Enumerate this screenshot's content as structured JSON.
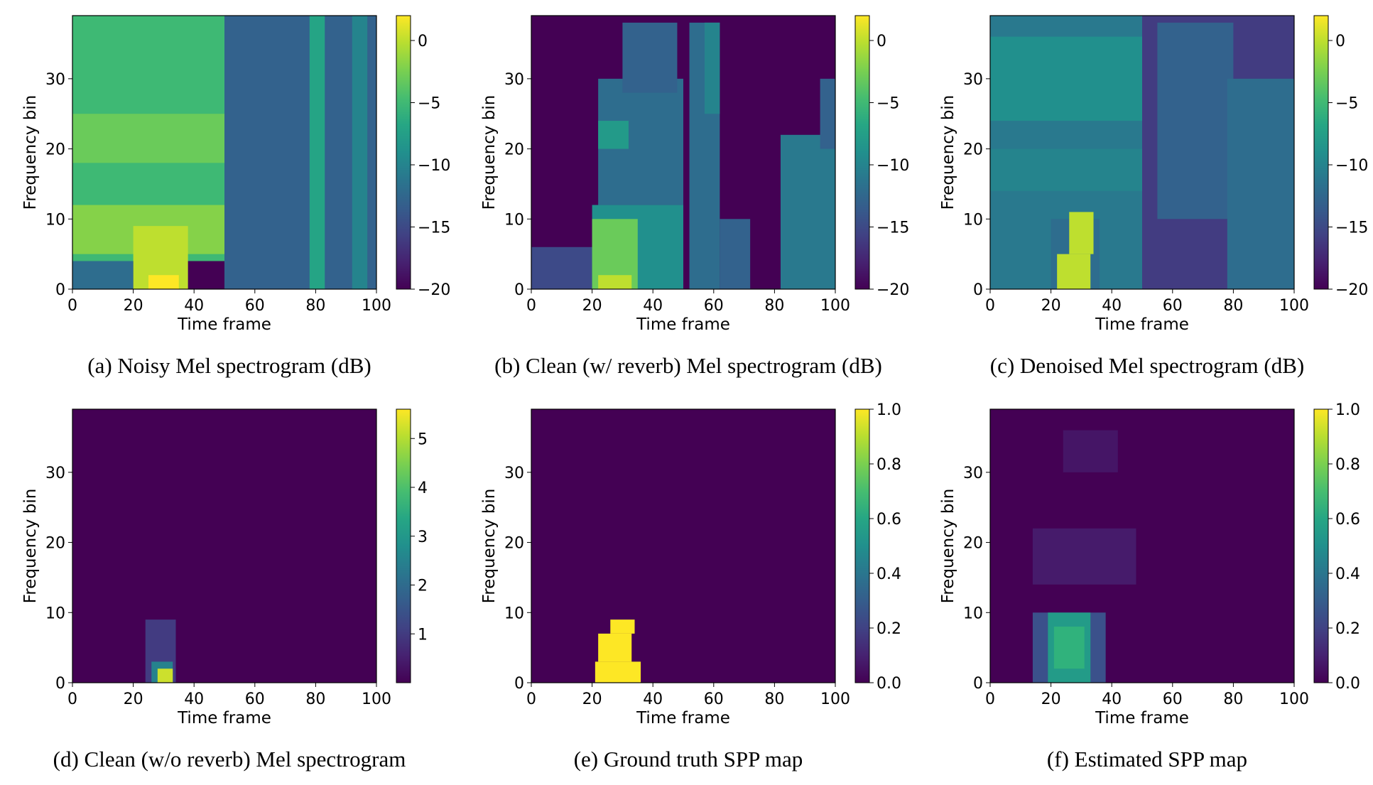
{
  "chart_data": [
    {
      "type": "heatmap",
      "panel": "a",
      "caption": "(a) Noisy Mel spectrogram (dB)",
      "xlabel": "Time frame",
      "ylabel": "Frequency bin",
      "xlim": [
        0,
        100
      ],
      "ylim": [
        0,
        39
      ],
      "xticks": [
        "0",
        "20",
        "40",
        "60",
        "80",
        "100"
      ],
      "yticks": [
        "0",
        "10",
        "20",
        "30"
      ],
      "colorbar": {
        "range": [
          -20,
          2
        ],
        "ticks": [
          "0",
          "−5",
          "−10",
          "−15",
          "−20"
        ]
      },
      "regions": [
        {
          "x": [
            0,
            50
          ],
          "y": [
            4,
            39
          ],
          "value": -5
        },
        {
          "x": [
            0,
            50
          ],
          "y": [
            5,
            12
          ],
          "value": -2
        },
        {
          "x": [
            0,
            50
          ],
          "y": [
            18,
            25
          ],
          "value": -3
        },
        {
          "x": [
            20,
            38
          ],
          "y": [
            0,
            9
          ],
          "value": 0
        },
        {
          "x": [
            25,
            35
          ],
          "y": [
            0,
            2
          ],
          "value": 2
        },
        {
          "x": [
            0,
            20
          ],
          "y": [
            0,
            4
          ],
          "value": -12
        },
        {
          "x": [
            50,
            100
          ],
          "y": [
            0,
            39
          ],
          "value": -13
        },
        {
          "x": [
            78,
            83
          ],
          "y": [
            0,
            39
          ],
          "value": -7
        },
        {
          "x": [
            92,
            97
          ],
          "y": [
            0,
            39
          ],
          "value": -10
        }
      ]
    },
    {
      "type": "heatmap",
      "panel": "b",
      "caption": "(b) Clean (w/ reverb) Mel spectrogram (dB)",
      "xlabel": "Time frame",
      "ylabel": "Frequency bin",
      "xlim": [
        0,
        100
      ],
      "ylim": [
        0,
        39
      ],
      "xticks": [
        "0",
        "20",
        "40",
        "60",
        "80",
        "100"
      ],
      "yticks": [
        "0",
        "10",
        "20",
        "30"
      ],
      "colorbar": {
        "range": [
          -20,
          2
        ],
        "ticks": [
          "0",
          "−5",
          "−10",
          "−15",
          "−20"
        ]
      },
      "regions": [
        {
          "x": [
            0,
            20
          ],
          "y": [
            0,
            6
          ],
          "value": -15
        },
        {
          "x": [
            20,
            50
          ],
          "y": [
            0,
            12
          ],
          "value": -9
        },
        {
          "x": [
            22,
            50
          ],
          "y": [
            12,
            30
          ],
          "value": -12
        },
        {
          "x": [
            30,
            48
          ],
          "y": [
            28,
            38
          ],
          "value": -13
        },
        {
          "x": [
            20,
            35
          ],
          "y": [
            0,
            10
          ],
          "value": -3
        },
        {
          "x": [
            22,
            33
          ],
          "y": [
            0,
            2
          ],
          "value": 0
        },
        {
          "x": [
            22,
            32
          ],
          "y": [
            20,
            24
          ],
          "value": -8
        },
        {
          "x": [
            52,
            62
          ],
          "y": [
            0,
            38
          ],
          "value": -12
        },
        {
          "x": [
            57,
            62
          ],
          "y": [
            25,
            38
          ],
          "value": -10
        },
        {
          "x": [
            62,
            72
          ],
          "y": [
            0,
            10
          ],
          "value": -13
        },
        {
          "x": [
            82,
            100
          ],
          "y": [
            0,
            22
          ],
          "value": -11
        },
        {
          "x": [
            95,
            100
          ],
          "y": [
            20,
            30
          ],
          "value": -13
        }
      ]
    },
    {
      "type": "heatmap",
      "panel": "c",
      "caption": "(c) Denoised Mel spectrogram (dB)",
      "xlabel": "Time frame",
      "ylabel": "Frequency bin",
      "xlim": [
        0,
        100
      ],
      "ylim": [
        0,
        39
      ],
      "xticks": [
        "0",
        "20",
        "40",
        "60",
        "80",
        "100"
      ],
      "yticks": [
        "0",
        "10",
        "20",
        "30"
      ],
      "colorbar": {
        "range": [
          -20,
          2
        ],
        "ticks": [
          "0",
          "−5",
          "−10",
          "−15",
          "−20"
        ]
      },
      "regions": [
        {
          "x": [
            0,
            50
          ],
          "y": [
            0,
            39
          ],
          "value": -11
        },
        {
          "x": [
            0,
            50
          ],
          "y": [
            24,
            36
          ],
          "value": -9
        },
        {
          "x": [
            0,
            50
          ],
          "y": [
            14,
            20
          ],
          "value": -10
        },
        {
          "x": [
            20,
            36
          ],
          "y": [
            0,
            10
          ],
          "value": -12
        },
        {
          "x": [
            22,
            33
          ],
          "y": [
            0,
            5
          ],
          "value": 0
        },
        {
          "x": [
            26,
            34
          ],
          "y": [
            5,
            11
          ],
          "value": 0
        },
        {
          "x": [
            50,
            100
          ],
          "y": [
            0,
            39
          ],
          "value": -16
        },
        {
          "x": [
            55,
            80
          ],
          "y": [
            10,
            38
          ],
          "value": -13
        },
        {
          "x": [
            78,
            100
          ],
          "y": [
            0,
            30
          ],
          "value": -12
        }
      ]
    },
    {
      "type": "heatmap",
      "panel": "d",
      "caption": "(d) Clean (w/o reverb) Mel spectrogram",
      "xlabel": "Time frame",
      "ylabel": "Frequency bin",
      "xlim": [
        0,
        100
      ],
      "ylim": [
        0,
        39
      ],
      "xticks": [
        "0",
        "20",
        "40",
        "60",
        "80",
        "100"
      ],
      "yticks": [
        "0",
        "10",
        "20",
        "30"
      ],
      "colorbar": {
        "range": [
          0,
          5.6
        ],
        "ticks": [
          "1",
          "2",
          "3",
          "4",
          "5"
        ]
      },
      "regions": [
        {
          "x": [
            24,
            34
          ],
          "y": [
            0,
            9
          ],
          "value": 1
        },
        {
          "x": [
            26,
            33
          ],
          "y": [
            0,
            3
          ],
          "value": 2.5
        },
        {
          "x": [
            28,
            33
          ],
          "y": [
            0,
            2
          ],
          "value": 5.2
        }
      ]
    },
    {
      "type": "heatmap",
      "panel": "e",
      "caption": "(e) Ground truth SPP map",
      "xlabel": "Time frame",
      "ylabel": "Frequency bin",
      "xlim": [
        0,
        100
      ],
      "ylim": [
        0,
        39
      ],
      "xticks": [
        "0",
        "20",
        "40",
        "60",
        "80",
        "100"
      ],
      "yticks": [
        "0",
        "10",
        "20",
        "30"
      ],
      "colorbar": {
        "range": [
          0,
          1
        ],
        "ticks": [
          "0.0",
          "0.2",
          "0.4",
          "0.6",
          "0.8",
          "1.0"
        ]
      },
      "regions": [
        {
          "x": [
            21,
            36
          ],
          "y": [
            0,
            3
          ],
          "value": 1
        },
        {
          "x": [
            22,
            33
          ],
          "y": [
            3,
            7
          ],
          "value": 1
        },
        {
          "x": [
            26,
            34
          ],
          "y": [
            7,
            9
          ],
          "value": 1
        }
      ]
    },
    {
      "type": "heatmap",
      "panel": "f",
      "caption": "(f) Estimated SPP map",
      "xlabel": "Time frame",
      "ylabel": "Frequency bin",
      "xlim": [
        0,
        100
      ],
      "ylim": [
        0,
        39
      ],
      "xticks": [
        "0",
        "20",
        "40",
        "60",
        "80",
        "100"
      ],
      "yticks": [
        "0",
        "10",
        "20",
        "30"
      ],
      "colorbar": {
        "range": [
          0,
          1
        ],
        "ticks": [
          "0.0",
          "0.2",
          "0.4",
          "0.6",
          "0.8",
          "1.0"
        ]
      },
      "regions": [
        {
          "x": [
            14,
            48
          ],
          "y": [
            14,
            22
          ],
          "value": 0.08
        },
        {
          "x": [
            24,
            42
          ],
          "y": [
            30,
            36
          ],
          "value": 0.06
        },
        {
          "x": [
            14,
            38
          ],
          "y": [
            0,
            10
          ],
          "value": 0.25
        },
        {
          "x": [
            19,
            33
          ],
          "y": [
            0,
            10
          ],
          "value": 0.55
        },
        {
          "x": [
            21,
            31
          ],
          "y": [
            2,
            8
          ],
          "value": 0.65
        }
      ]
    }
  ]
}
